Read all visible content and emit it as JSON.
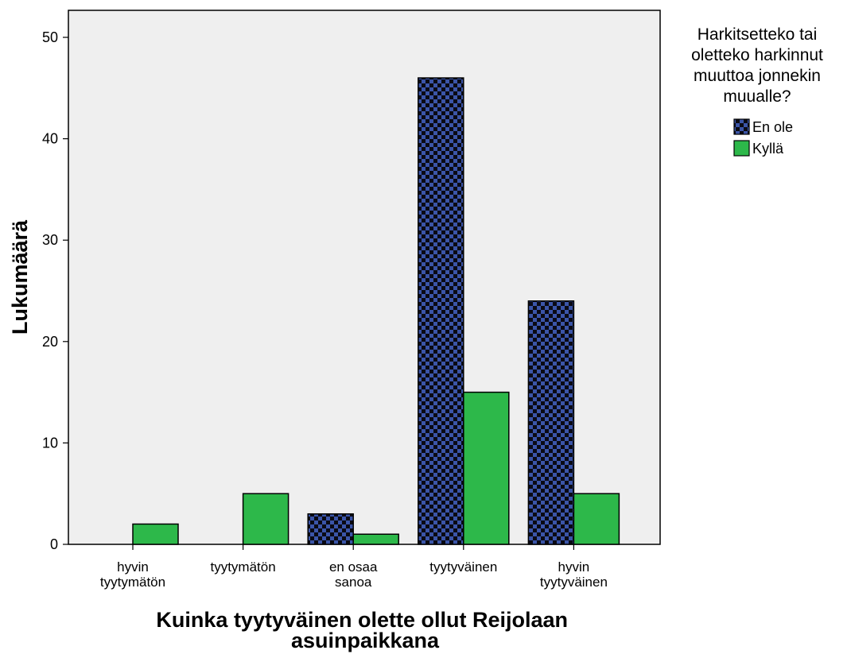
{
  "chart_data": {
    "type": "bar",
    "categories": [
      [
        "hyvin",
        "tyytymätön"
      ],
      [
        "tyytymätön"
      ],
      [
        "en osaa",
        "sanoa"
      ],
      [
        "tyytyväinen"
      ],
      [
        "hyvin",
        "tyytyväinen"
      ]
    ],
    "series": [
      {
        "name": "En ole",
        "values": [
          0,
          0,
          3,
          46,
          24
        ],
        "color": "#3b55a8",
        "pattern": "checkerboard"
      },
      {
        "name": "Kyllä",
        "values": [
          2,
          5,
          1,
          15,
          5
        ],
        "color": "#2db84a",
        "pattern": "solid"
      }
    ],
    "xlabel": [
      "Kuinka tyytyväinen olette ollut Reijolaan",
      "asuinpaikkana"
    ],
    "ylabel": "Lukumäärä",
    "ylim": [
      0,
      50
    ],
    "yticks": [
      0,
      10,
      20,
      30,
      40,
      50
    ],
    "legend": {
      "title": [
        "Harkitsetteko tai",
        "oletteko harkinnut",
        "muuttoa jonnekin",
        "muualle?"
      ],
      "placement": "top-right, outside plot"
    },
    "plot_background": "#efefef",
    "grid": false
  }
}
